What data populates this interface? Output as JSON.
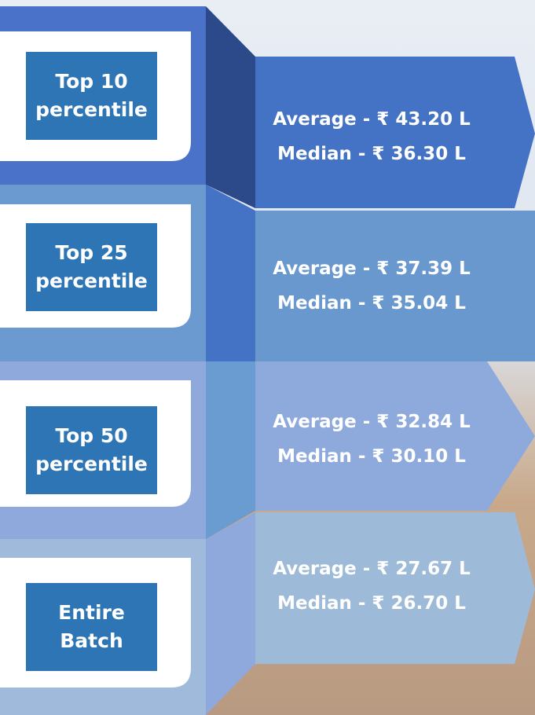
{
  "rows": [
    {
      "label": "Top 10 percentile",
      "average": "Average - ₹ 43.20 L",
      "median": "Median - ₹ 36.30 L"
    },
    {
      "label": "Top 25 percentile",
      "average": "Average - ₹ 37.39 L",
      "median": "Median - ₹ 35.04 L"
    },
    {
      "label": "Top 50 percentile",
      "average": "Average - ₹ 32.84 L",
      "median": "Median - ₹ 30.10 L"
    },
    {
      "label": "Entire Batch",
      "average": "Average - ₹ 27.67 L",
      "median": "Median - ₹ 26.70 L"
    }
  ]
}
